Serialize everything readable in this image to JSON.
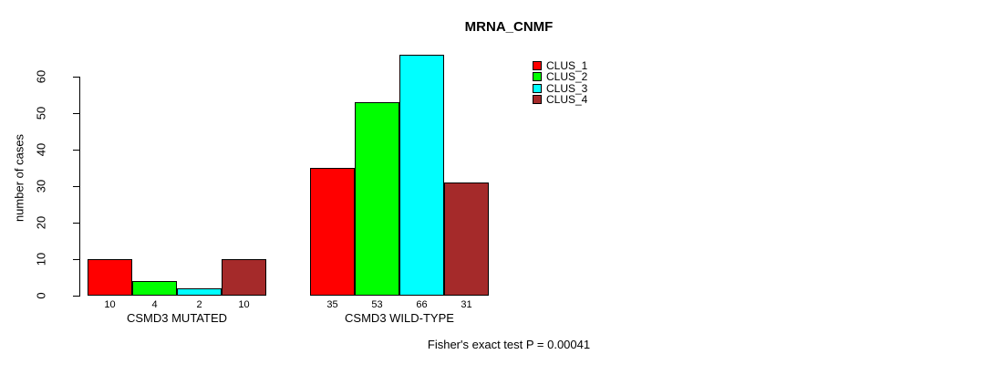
{
  "chart_data": {
    "type": "bar",
    "title": "MRNA_CNMF",
    "xlabel": "",
    "ylabel": "number of cases",
    "groups": [
      "CSMD3 MUTATED",
      "CSMD3 WILD-TYPE"
    ],
    "series": [
      {
        "name": "CLUS_1",
        "color": "#ff0000",
        "values": [
          10,
          35
        ]
      },
      {
        "name": "CLUS_2",
        "color": "#00ff00",
        "values": [
          4,
          53
        ]
      },
      {
        "name": "CLUS_3",
        "color": "#00ffff",
        "values": [
          2,
          66
        ]
      },
      {
        "name": "CLUS_4",
        "color": "#a52a2a",
        "values": [
          10,
          31
        ]
      }
    ],
    "bar_value_labels": [
      [
        "10",
        "4",
        "2",
        "10"
      ],
      [
        "35",
        "53",
        "66",
        "31"
      ]
    ],
    "yticks": [
      0,
      10,
      20,
      30,
      40,
      50,
      60
    ],
    "ylim": [
      0,
      66
    ],
    "grid": false,
    "legend_position": "right-outside",
    "annotation": "Fisher's exact test P = 0.00041"
  },
  "colors": {
    "background": "#ffffff",
    "axis": "#000000",
    "text": "#000000"
  }
}
